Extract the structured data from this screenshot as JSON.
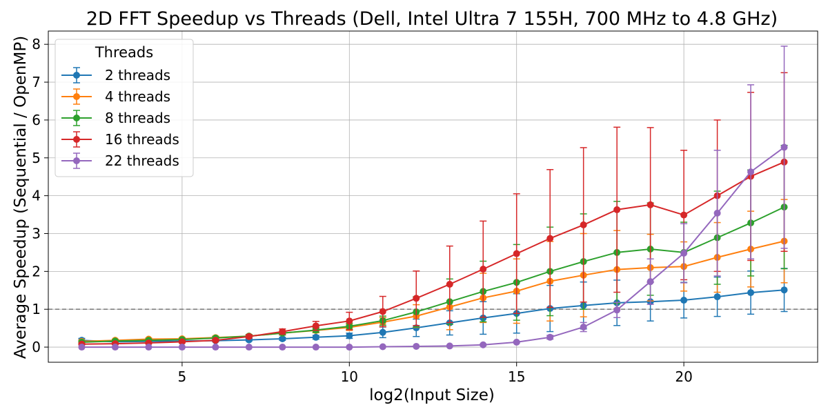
{
  "chart_data": {
    "type": "line",
    "title": "2D FFT Speedup vs Threads (Dell, Intel Ultra 7 155H, 700 MHz to 4.8 GHz)",
    "xlabel": "log2(Input Size)",
    "ylabel": "Average Speedup (Sequential / OpenMP)",
    "xlim": [
      1.0,
      24.0
    ],
    "ylim": [
      -0.4,
      8.35
    ],
    "xticks": [
      5,
      10,
      15,
      20
    ],
    "yticks": [
      0,
      1,
      2,
      3,
      4,
      5,
      6,
      7,
      8
    ],
    "grid": true,
    "reference_line": {
      "y": 1,
      "style": "dashed",
      "color": "#808080"
    },
    "legend": {
      "title": "Threads",
      "position": "top-left"
    },
    "x": [
      2,
      3,
      4,
      5,
      6,
      7,
      8,
      9,
      10,
      11,
      12,
      13,
      14,
      15,
      16,
      17,
      18,
      19,
      20,
      21,
      22,
      23
    ],
    "series": [
      {
        "name": "2 threads",
        "color": "#1f77b4",
        "values": [
          0.18,
          0.14,
          0.15,
          0.16,
          0.17,
          0.19,
          0.22,
          0.26,
          0.3,
          0.39,
          0.51,
          0.64,
          0.77,
          0.89,
          1.02,
          1.1,
          1.17,
          1.2,
          1.24,
          1.33,
          1.44,
          1.51
        ],
        "err": [
          0.05,
          0.03,
          0.03,
          0.03,
          0.03,
          0.03,
          0.04,
          0.05,
          0.07,
          0.14,
          0.23,
          0.32,
          0.43,
          0.52,
          0.61,
          0.62,
          0.6,
          0.51,
          0.47,
          0.52,
          0.57,
          0.57
        ]
      },
      {
        "name": "4 threads",
        "color": "#ff7f0e",
        "values": [
          0.15,
          0.18,
          0.21,
          0.22,
          0.25,
          0.29,
          0.37,
          0.44,
          0.52,
          0.66,
          0.82,
          1.06,
          1.3,
          1.48,
          1.74,
          1.9,
          2.05,
          2.1,
          2.13,
          2.37,
          2.59,
          2.8
        ],
        "err": [
          0.03,
          0.03,
          0.03,
          0.03,
          0.04,
          0.04,
          0.05,
          0.06,
          0.08,
          0.12,
          0.3,
          0.6,
          0.65,
          0.85,
          1.05,
          1.1,
          1.03,
          0.88,
          0.65,
          0.92,
          1.0,
          1.1
        ]
      },
      {
        "name": "8 threads",
        "color": "#2ca02c",
        "values": [
          0.13,
          0.16,
          0.18,
          0.2,
          0.24,
          0.29,
          0.37,
          0.45,
          0.55,
          0.7,
          0.93,
          1.2,
          1.47,
          1.71,
          2.0,
          2.26,
          2.5,
          2.59,
          2.5,
          2.89,
          3.28,
          3.7
        ],
        "err": [
          0.03,
          0.03,
          0.03,
          0.03,
          0.04,
          0.04,
          0.05,
          0.06,
          0.08,
          0.12,
          0.4,
          0.6,
          0.8,
          1.0,
          1.17,
          1.26,
          1.35,
          1.22,
          0.8,
          1.23,
          1.4,
          1.63
        ]
      },
      {
        "name": "16 threads",
        "color": "#d62728",
        "values": [
          0.08,
          0.09,
          0.11,
          0.14,
          0.18,
          0.28,
          0.41,
          0.56,
          0.69,
          0.94,
          1.29,
          1.66,
          2.06,
          2.47,
          2.87,
          3.23,
          3.63,
          3.76,
          3.49,
          4.0,
          4.51,
          4.89
        ],
        "err": [
          0.02,
          0.02,
          0.02,
          0.03,
          0.03,
          0.04,
          0.07,
          0.12,
          0.23,
          0.4,
          0.72,
          1.01,
          1.27,
          1.58,
          1.82,
          2.04,
          2.18,
          2.04,
          1.71,
          2.0,
          2.22,
          2.36
        ]
      },
      {
        "name": "22 threads",
        "color": "#9467bd",
        "values": [
          0.0,
          0.0,
          0.0,
          0.0,
          0.0,
          0.0,
          0.0,
          0.0,
          0.0,
          0.01,
          0.02,
          0.03,
          0.06,
          0.13,
          0.26,
          0.53,
          0.98,
          1.73,
          2.48,
          3.54,
          4.63,
          5.28
        ],
        "err": [
          0.0,
          0.0,
          0.0,
          0.0,
          0.0,
          0.0,
          0.0,
          0.0,
          0.0,
          0.0,
          0.0,
          0.0,
          0.02,
          0.02,
          0.05,
          0.12,
          0.2,
          0.6,
          0.78,
          1.66,
          2.3,
          2.67
        ]
      }
    ]
  }
}
